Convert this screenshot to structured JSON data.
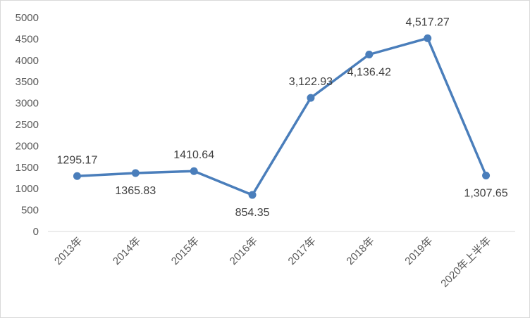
{
  "chart_data": {
    "type": "line",
    "title": "",
    "xlabel": "",
    "ylabel": "",
    "categories": [
      "2013年",
      "2014年",
      "2015年",
      "2016年",
      "2017年",
      "2018年",
      "2019年",
      "2020年上半年"
    ],
    "series": [
      {
        "values": [
          1295.17,
          1365.83,
          1410.64,
          854.35,
          3122.93,
          4136.42,
          4517.27,
          1307.65
        ],
        "data_labels": [
          "1295.17",
          "1365.83",
          "1410.64",
          "854.35",
          "3,122.93",
          "4,136.42",
          "4,517.27",
          "1,307.65"
        ],
        "label_positions": [
          "above",
          "below",
          "above",
          "below",
          "above",
          "below",
          "above",
          "below"
        ],
        "color": "#4a7ebb",
        "marker": "circle"
      }
    ],
    "ylim": [
      0,
      5000
    ],
    "yticks": [
      0,
      500,
      1000,
      1500,
      2000,
      2500,
      3000,
      3500,
      4000,
      4500,
      5000
    ],
    "grid": false,
    "legend": "none",
    "x_tick_rotation": "-45"
  }
}
